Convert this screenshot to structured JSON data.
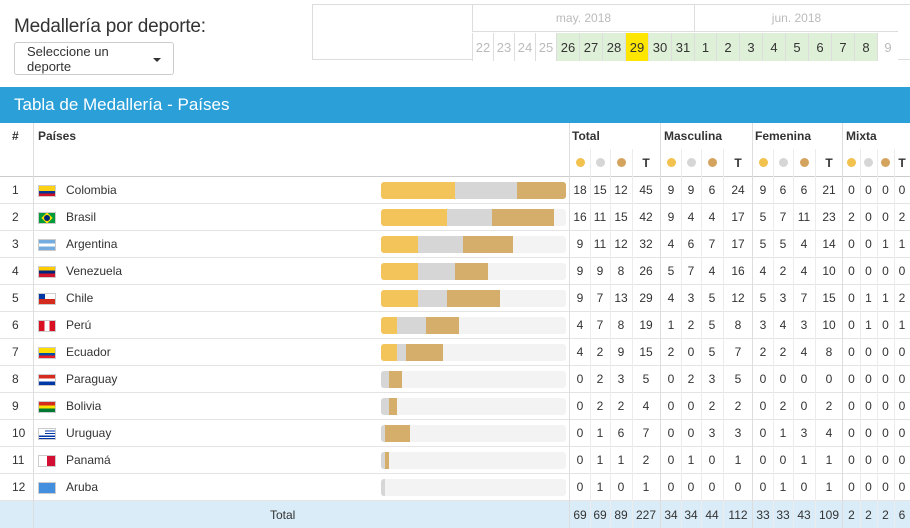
{
  "header": {
    "title": "Medallería por deporte:",
    "select_label": "Seleccione un deporte"
  },
  "calendar": {
    "months": [
      "may. 2018",
      "jun. 2018"
    ],
    "days": [
      {
        "d": "22",
        "state": "past"
      },
      {
        "d": "23",
        "state": "past"
      },
      {
        "d": "24",
        "state": "past"
      },
      {
        "d": "25",
        "state": "past"
      },
      {
        "d": "26",
        "state": "event"
      },
      {
        "d": "27",
        "state": "event"
      },
      {
        "d": "28",
        "state": "event"
      },
      {
        "d": "29",
        "state": "today"
      },
      {
        "d": "30",
        "state": "event"
      },
      {
        "d": "31",
        "state": "event"
      },
      {
        "d": "1",
        "state": "event"
      },
      {
        "d": "2",
        "state": "event"
      },
      {
        "d": "3",
        "state": "event"
      },
      {
        "d": "4",
        "state": "event"
      },
      {
        "d": "5",
        "state": "event"
      },
      {
        "d": "6",
        "state": "event"
      },
      {
        "d": "7",
        "state": "event"
      },
      {
        "d": "8",
        "state": "event"
      },
      {
        "d": "9",
        "state": "blank"
      }
    ],
    "colors": {
      "event": "#dff0d8",
      "today": "#ffe600"
    }
  },
  "banner": {
    "title": "Tabla de Medallería - Países"
  },
  "table": {
    "col_rank": "#",
    "col_country": "Países",
    "groups": [
      "Total",
      "Masculina",
      "Femenina",
      "Mixta"
    ],
    "total_label": "T",
    "medal_icons": [
      "gold-medal-icon",
      "silver-medal-icon",
      "bronze-medal-icon"
    ],
    "medal_colors": {
      "gold": "#f2c45a",
      "silver": "#d6d6d6",
      "bronze": "#d6ae6c"
    },
    "rows": [
      {
        "rank": "1",
        "country": "Colombia",
        "flag": "co",
        "total": [
          "18",
          "15",
          "12",
          "45"
        ],
        "male": [
          "9",
          "9",
          "6",
          "24"
        ],
        "female": [
          "9",
          "6",
          "6",
          "21"
        ],
        "mixed": [
          "0",
          "0",
          "0",
          "0"
        ]
      },
      {
        "rank": "2",
        "country": "Brasil",
        "flag": "br",
        "total": [
          "16",
          "11",
          "15",
          "42"
        ],
        "male": [
          "9",
          "4",
          "4",
          "17"
        ],
        "female": [
          "5",
          "7",
          "11",
          "23"
        ],
        "mixed": [
          "2",
          "0",
          "0",
          "2"
        ]
      },
      {
        "rank": "3",
        "country": "Argentina",
        "flag": "ar",
        "total": [
          "9",
          "11",
          "12",
          "32"
        ],
        "male": [
          "4",
          "6",
          "7",
          "17"
        ],
        "female": [
          "5",
          "5",
          "4",
          "14"
        ],
        "mixed": [
          "0",
          "0",
          "1",
          "1"
        ]
      },
      {
        "rank": "4",
        "country": "Venezuela",
        "flag": "ve",
        "total": [
          "9",
          "9",
          "8",
          "26"
        ],
        "male": [
          "5",
          "7",
          "4",
          "16"
        ],
        "female": [
          "4",
          "2",
          "4",
          "10"
        ],
        "mixed": [
          "0",
          "0",
          "0",
          "0"
        ]
      },
      {
        "rank": "5",
        "country": "Chile",
        "flag": "cl",
        "total": [
          "9",
          "7",
          "13",
          "29"
        ],
        "male": [
          "4",
          "3",
          "5",
          "12"
        ],
        "female": [
          "5",
          "3",
          "7",
          "15"
        ],
        "mixed": [
          "0",
          "1",
          "1",
          "2"
        ]
      },
      {
        "rank": "6",
        "country": "Perú",
        "flag": "pe",
        "total": [
          "4",
          "7",
          "8",
          "19"
        ],
        "male": [
          "1",
          "2",
          "5",
          "8"
        ],
        "female": [
          "3",
          "4",
          "3",
          "10"
        ],
        "mixed": [
          "0",
          "1",
          "0",
          "1"
        ]
      },
      {
        "rank": "7",
        "country": "Ecuador",
        "flag": "ec",
        "total": [
          "4",
          "2",
          "9",
          "15"
        ],
        "male": [
          "2",
          "0",
          "5",
          "7"
        ],
        "female": [
          "2",
          "2",
          "4",
          "8"
        ],
        "mixed": [
          "0",
          "0",
          "0",
          "0"
        ]
      },
      {
        "rank": "8",
        "country": "Paraguay",
        "flag": "py",
        "total": [
          "0",
          "2",
          "3",
          "5"
        ],
        "male": [
          "0",
          "2",
          "3",
          "5"
        ],
        "female": [
          "0",
          "0",
          "0",
          "0"
        ],
        "mixed": [
          "0",
          "0",
          "0",
          "0"
        ]
      },
      {
        "rank": "9",
        "country": "Bolivia",
        "flag": "bo",
        "total": [
          "0",
          "2",
          "2",
          "4"
        ],
        "male": [
          "0",
          "0",
          "2",
          "2"
        ],
        "female": [
          "0",
          "2",
          "0",
          "2"
        ],
        "mixed": [
          "0",
          "0",
          "0",
          "0"
        ]
      },
      {
        "rank": "10",
        "country": "Uruguay",
        "flag": "uy",
        "total": [
          "0",
          "1",
          "6",
          "7"
        ],
        "male": [
          "0",
          "0",
          "3",
          "3"
        ],
        "female": [
          "0",
          "1",
          "3",
          "4"
        ],
        "mixed": [
          "0",
          "0",
          "0",
          "0"
        ]
      },
      {
        "rank": "11",
        "country": "Panamá",
        "flag": "pa",
        "total": [
          "0",
          "1",
          "1",
          "2"
        ],
        "male": [
          "0",
          "1",
          "0",
          "1"
        ],
        "female": [
          "0",
          "0",
          "1",
          "1"
        ],
        "mixed": [
          "0",
          "0",
          "0",
          "0"
        ]
      },
      {
        "rank": "12",
        "country": "Aruba",
        "flag": "aw",
        "total": [
          "0",
          "1",
          "0",
          "1"
        ],
        "male": [
          "0",
          "0",
          "0",
          "0"
        ],
        "female": [
          "0",
          "1",
          "0",
          "1"
        ],
        "mixed": [
          "0",
          "0",
          "0",
          "0"
        ]
      }
    ],
    "footer": {
      "label": "Total",
      "total": [
        "69",
        "69",
        "89",
        "227"
      ],
      "male": [
        "34",
        "34",
        "44",
        "112"
      ],
      "female": [
        "33",
        "33",
        "43",
        "109"
      ],
      "mixed": [
        "2",
        "2",
        "2",
        "6"
      ]
    }
  }
}
